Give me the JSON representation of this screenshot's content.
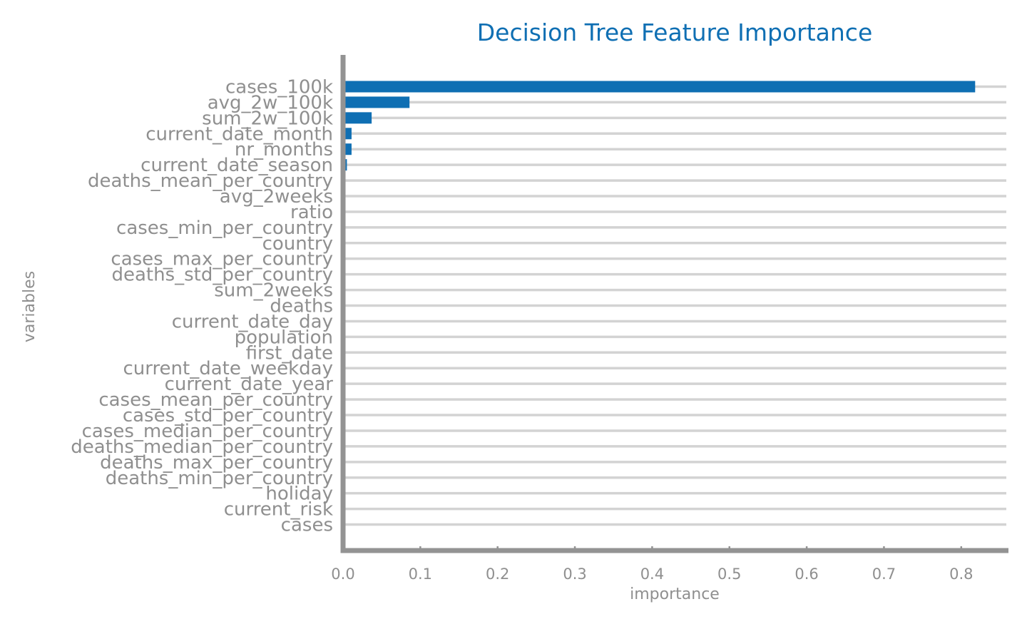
{
  "chart_data": {
    "type": "bar",
    "orientation": "horizontal",
    "title": "Decision Tree Feature Importance",
    "xlabel": "importance",
    "ylabel": "variables",
    "xlim": [
      0.0,
      0.86
    ],
    "xticks": [
      0.0,
      0.1,
      0.2,
      0.3,
      0.4,
      0.5,
      0.6,
      0.7,
      0.8
    ],
    "xtick_labels": [
      "0.0",
      "0.1",
      "0.2",
      "0.3",
      "0.4",
      "0.5",
      "0.6",
      "0.7",
      "0.8"
    ],
    "grid": true,
    "categories": [
      "cases_100k",
      "avg_2w_100k",
      "sum_2w_100k",
      "current_date_month",
      "nr_months",
      "current_date_season",
      "deaths_mean_per_country",
      "avg_2weeks",
      "ratio",
      "cases_min_per_country",
      "country",
      "cases_max_per_country",
      "deaths_std_per_country",
      "sum_2weeks",
      "deaths",
      "current_date_day",
      "population",
      "first_date",
      "current_date_weekday",
      "current_date_year",
      "cases_mean_per_country",
      "cases_std_per_country",
      "cases_median_per_country",
      "deaths_median_per_country",
      "deaths_max_per_country",
      "deaths_min_per_country",
      "holiday",
      "current_risk",
      "cases"
    ],
    "values": [
      0.818,
      0.086,
      0.037,
      0.011,
      0.011,
      0.005,
      0.002,
      0,
      0,
      0,
      0,
      0,
      0,
      0,
      0,
      0,
      0,
      0,
      0,
      0,
      0,
      0,
      0,
      0,
      0,
      0,
      0,
      0,
      0
    ],
    "colors": {
      "bar": "#0f6fb3",
      "grid": "#d3d3d3",
      "axis": "#939393",
      "text": "#8f8f8f",
      "title": "#0f6fb3"
    }
  }
}
